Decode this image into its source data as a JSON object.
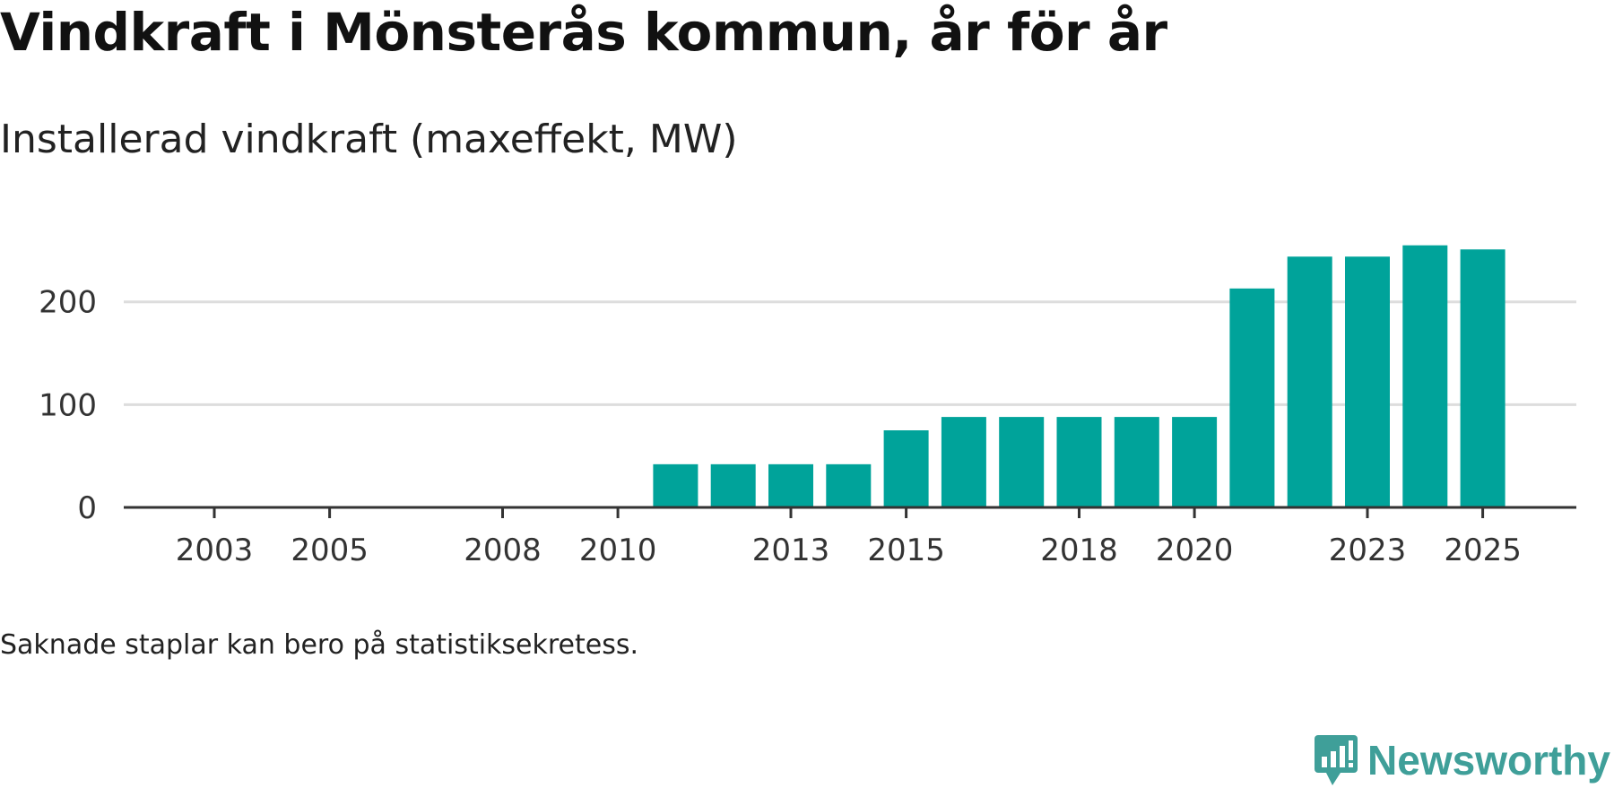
{
  "title": "Vindkraft i Mönsterås kommun, år för år",
  "subtitle": "Installerad vindkraft (maxeffekt, MW)",
  "note": "Saknade staplar kan bero på statistiksekretess.",
  "brand": "Newsworthy",
  "colors": {
    "bar": "#00a39a",
    "grid": "#dddddd",
    "axis": "#333333",
    "brand": "#3f9f99"
  },
  "chart_data": {
    "type": "bar",
    "title": "Vindkraft i Mönsterås kommun, år för år",
    "ylabel": "Installerad vindkraft (maxeffekt, MW)",
    "xlabel": "",
    "categories": [
      2003,
      2004,
      2005,
      2006,
      2007,
      2008,
      2009,
      2010,
      2011,
      2012,
      2013,
      2014,
      2015,
      2016,
      2017,
      2018,
      2019,
      2020,
      2021,
      2022,
      2023,
      2024,
      2025
    ],
    "values": [
      0,
      0,
      0,
      0,
      0,
      0,
      0,
      0,
      42,
      42,
      42,
      42,
      75,
      88,
      88,
      88,
      88,
      88,
      213,
      244,
      244,
      255,
      251
    ],
    "xticks": [
      "2003",
      "2005",
      "2008",
      "2010",
      "2013",
      "2015",
      "2018",
      "2020",
      "2023",
      "2025"
    ],
    "yticks": [
      "0",
      "100",
      "200"
    ],
    "ylim": [
      0,
      260
    ],
    "grid": true,
    "legend": "none"
  }
}
